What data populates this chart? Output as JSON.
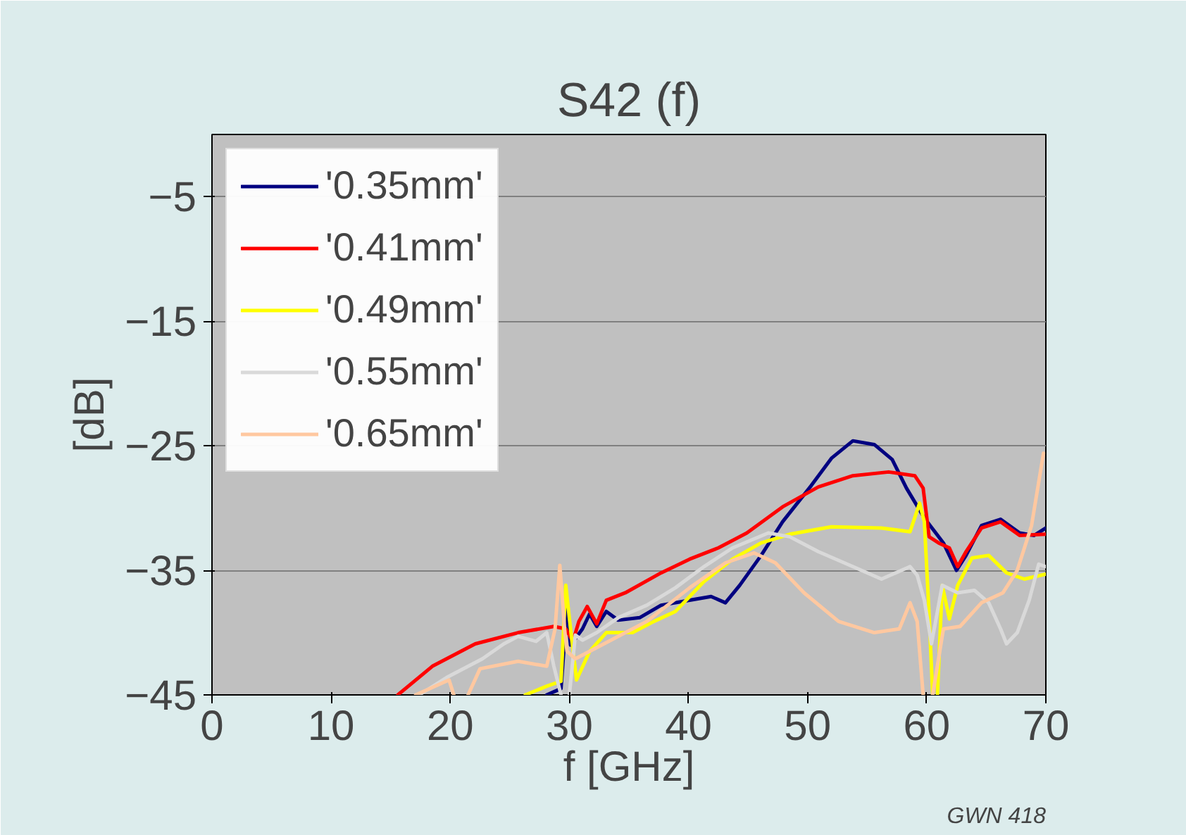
{
  "chart_data": {
    "type": "line",
    "title": "S42 (f)",
    "xlabel": "f [GHz]",
    "ylabel": "[dB]",
    "xlim": [
      0,
      70
    ],
    "ylim": [
      -45,
      0
    ],
    "xticks": [
      0,
      10,
      20,
      30,
      40,
      50,
      60,
      70
    ],
    "yticks": [
      -5,
      -15,
      -25,
      -35,
      -45
    ],
    "grid": "y",
    "legend": "top left",
    "marker": "none",
    "line_style": "solid",
    "annotations": [
      "GWN 418"
    ],
    "series": [
      {
        "name": "'0.35mm'",
        "color": "#000080",
        "x": [
          28.1,
          29.3,
          29.8,
          30.1,
          31.1,
          31.7,
          32.3,
          33.1,
          34.1,
          35.9,
          37.7,
          40.1,
          41.9,
          43.1,
          44.3,
          46.1,
          47.9,
          50.3,
          52,
          53.8,
          55.6,
          57.1,
          58.3,
          59.8,
          61.4,
          62.5,
          63.3,
          64.6,
          66.2,
          67.8,
          69,
          70
        ],
        "values": [
          -45,
          -44.5,
          -38,
          -41,
          -39.7,
          -38.5,
          -39.5,
          -38.3,
          -39,
          -38.8,
          -37.8,
          -37.4,
          -37.1,
          -37.6,
          -36.2,
          -33.8,
          -31.1,
          -28.2,
          -26,
          -24.6,
          -24.9,
          -26.1,
          -28.4,
          -30.8,
          -32.8,
          -35,
          -33.8,
          -31.4,
          -30.9,
          -32,
          -32.2,
          -31.6
        ]
      },
      {
        "name": "'0.41mm'",
        "color": "#ff0000",
        "x": [
          15.6,
          18.5,
          22.1,
          25.7,
          28.7,
          29.7,
          30.3,
          30.8,
          31.5,
          32.3,
          33.1,
          34.7,
          37.7,
          40.1,
          42.5,
          44.9,
          47.9,
          50.9,
          53.8,
          56.8,
          59,
          59.7,
          60.2,
          61,
          61.9,
          62.6,
          63.3,
          64.6,
          66.2,
          67.8,
          70
        ],
        "values": [
          -45,
          -42.7,
          -40.9,
          -40,
          -39.5,
          -39.7,
          -40.7,
          -39.1,
          -37.9,
          -39.3,
          -37.4,
          -36.8,
          -35.2,
          -34.1,
          -33.2,
          -32,
          -29.9,
          -28.3,
          -27.4,
          -27.1,
          -27.4,
          -28.4,
          -32.3,
          -32.8,
          -33.2,
          -34.7,
          -33.5,
          -31.6,
          -31.1,
          -32.2,
          -32.1
        ]
      },
      {
        "name": "'0.49mm'",
        "color": "#ffff00",
        "x": [
          26.3,
          28.1,
          29.3,
          29.7,
          30.1,
          30.6,
          31.7,
          33.1,
          35.3,
          37.1,
          38.9,
          41.3,
          43.7,
          46.1,
          48.5,
          52,
          56.2,
          58.6,
          59.4,
          59.8,
          60.2,
          60.5,
          60.7,
          60.9,
          61.3,
          61.9,
          62.6,
          63.8,
          65.2,
          66.7,
          68.2,
          70
        ],
        "values": [
          -45,
          -44.3,
          -43.9,
          -36.2,
          -39.7,
          -43.8,
          -41.5,
          -40,
          -40,
          -39.1,
          -38.3,
          -35.9,
          -34.1,
          -32.8,
          -32.1,
          -31.5,
          -31.6,
          -31.9,
          -29.6,
          -31.1,
          -38.5,
          -45,
          null,
          -45,
          -36.2,
          -38.9,
          -36.2,
          -34,
          -33.8,
          -35.2,
          -35.7,
          -35.3
        ]
      },
      {
        "name": "'0.55mm'",
        "color": "#d9d9d9",
        "x": [
          17.4,
          19.7,
          22.7,
          24.5,
          25.7,
          27.2,
          28.1,
          28.7,
          29.3,
          29.6,
          30,
          30.5,
          31.1,
          32.3,
          34.1,
          36.5,
          38.9,
          41.3,
          43.7,
          46.7,
          48.5,
          50.9,
          53.8,
          56.2,
          58.6,
          59.2,
          59.8,
          60.4,
          61.3,
          62.6,
          64,
          65.2,
          66.2,
          66.7,
          67.6,
          68.6,
          69.4,
          70
        ],
        "values": [
          -45,
          -43.6,
          -42.1,
          -40.9,
          -40.3,
          -40.7,
          -40,
          -42.7,
          -45,
          null,
          -45,
          -40.2,
          -40.6,
          -40,
          -38.8,
          -37.8,
          -36.4,
          -34.7,
          -33.2,
          -32,
          -32.3,
          -33.5,
          -34.7,
          -35.7,
          -34.7,
          -35.4,
          -37.4,
          -40.9,
          -36.2,
          -36.8,
          -36.6,
          -37.6,
          -39.7,
          -40.9,
          -40,
          -37.4,
          -34.5,
          -34.7
        ]
      },
      {
        "name": "'0.65mm'",
        "color": "#ffc8a0",
        "x": [
          17.1,
          19.9,
          20.3,
          20.9,
          21.5,
          22.5,
          25.7,
          28.1,
          28.8,
          29.2,
          29.6,
          29.8,
          30.5,
          32.9,
          36.5,
          40.1,
          43.1,
          45.5,
          47.3,
          49.7,
          52.6,
          55.6,
          57.7,
          58.6,
          59.2,
          59.7,
          60.1,
          60.5,
          61.4,
          62.8,
          64.6,
          66.4,
          67.6,
          68.8,
          69.8
        ],
        "values": [
          -45,
          -43.8,
          -45,
          null,
          -45,
          -42.9,
          -42.3,
          -42.7,
          -39.7,
          -34.6,
          -39.7,
          -41.5,
          -42.1,
          -40.9,
          -39.1,
          -36.4,
          -34.4,
          -33.6,
          -34.4,
          -36.8,
          -39.1,
          -40,
          -39.7,
          -37.6,
          -39.1,
          -45,
          null,
          -45,
          -39.7,
          -39.5,
          -37.6,
          -36.8,
          -35,
          -31.4,
          -25.6
        ]
      }
    ]
  }
}
